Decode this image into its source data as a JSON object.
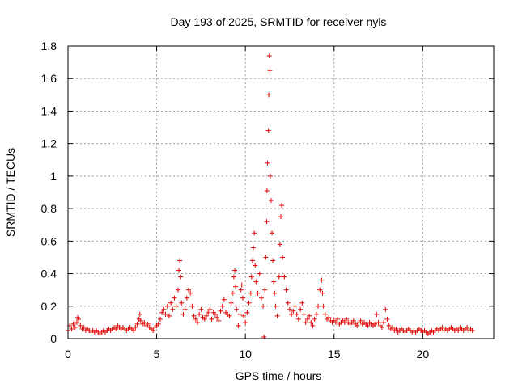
{
  "chart_data": {
    "type": "scatter",
    "title": "Day 193 of 2025, SRMTID for receiver nyls",
    "xlabel": "GPS time / hours",
    "ylabel": "SRMTID / TECUs",
    "xlim": [
      0,
      24
    ],
    "ylim": [
      0,
      1.8
    ],
    "xticks": [
      0,
      5,
      10,
      15,
      20
    ],
    "yticks": [
      0,
      0.2,
      0.4,
      0.6,
      0.8,
      1,
      1.2,
      1.4,
      1.6,
      1.8
    ],
    "ytick_labels": [
      "0",
      "0.2",
      "0.4",
      "0.6",
      "0.8",
      "1",
      "1.2",
      "1.4",
      "1.6",
      "1.8"
    ],
    "grid": true,
    "marker": "+",
    "color": "#e00000",
    "series": [
      {
        "name": "SRMTID",
        "points": [
          [
            0.0,
            0.05
          ],
          [
            0.1,
            0.08
          ],
          [
            0.2,
            0.06
          ],
          [
            0.3,
            0.09
          ],
          [
            0.4,
            0.07
          ],
          [
            0.5,
            0.1
          ],
          [
            0.55,
            0.13
          ],
          [
            0.6,
            0.12
          ],
          [
            0.7,
            0.08
          ],
          [
            0.8,
            0.06
          ],
          [
            0.9,
            0.07
          ],
          [
            1.0,
            0.05
          ],
          [
            1.1,
            0.06
          ],
          [
            1.2,
            0.05
          ],
          [
            1.3,
            0.04
          ],
          [
            1.4,
            0.05
          ],
          [
            1.5,
            0.04
          ],
          [
            1.6,
            0.05
          ],
          [
            1.7,
            0.04
          ],
          [
            1.8,
            0.03
          ],
          [
            1.9,
            0.04
          ],
          [
            2.0,
            0.05
          ],
          [
            2.1,
            0.04
          ],
          [
            2.2,
            0.05
          ],
          [
            2.3,
            0.06
          ],
          [
            2.4,
            0.05
          ],
          [
            2.5,
            0.06
          ],
          [
            2.6,
            0.07
          ],
          [
            2.7,
            0.06
          ],
          [
            2.8,
            0.08
          ],
          [
            2.9,
            0.07
          ],
          [
            3.0,
            0.06
          ],
          [
            3.1,
            0.07
          ],
          [
            3.2,
            0.06
          ],
          [
            3.3,
            0.05
          ],
          [
            3.4,
            0.06
          ],
          [
            3.5,
            0.07
          ],
          [
            3.6,
            0.06
          ],
          [
            3.7,
            0.05
          ],
          [
            3.8,
            0.07
          ],
          [
            3.9,
            0.09
          ],
          [
            4.0,
            0.12
          ],
          [
            4.05,
            0.15
          ],
          [
            4.1,
            0.11
          ],
          [
            4.2,
            0.09
          ],
          [
            4.3,
            0.1
          ],
          [
            4.4,
            0.08
          ],
          [
            4.5,
            0.09
          ],
          [
            4.6,
            0.07
          ],
          [
            4.7,
            0.06
          ],
          [
            4.8,
            0.05
          ],
          [
            4.9,
            0.07
          ],
          [
            5.0,
            0.08
          ],
          [
            5.1,
            0.09
          ],
          [
            5.2,
            0.12
          ],
          [
            5.3,
            0.16
          ],
          [
            5.4,
            0.18
          ],
          [
            5.5,
            0.15
          ],
          [
            5.6,
            0.2
          ],
          [
            5.7,
            0.14
          ],
          [
            5.8,
            0.22
          ],
          [
            5.9,
            0.18
          ],
          [
            6.0,
            0.25
          ],
          [
            6.1,
            0.2
          ],
          [
            6.2,
            0.3
          ],
          [
            6.25,
            0.42
          ],
          [
            6.3,
            0.48
          ],
          [
            6.35,
            0.38
          ],
          [
            6.4,
            0.22
          ],
          [
            6.5,
            0.15
          ],
          [
            6.6,
            0.18
          ],
          [
            6.7,
            0.25
          ],
          [
            6.8,
            0.3
          ],
          [
            6.9,
            0.28
          ],
          [
            7.0,
            0.2
          ],
          [
            7.1,
            0.14
          ],
          [
            7.2,
            0.12
          ],
          [
            7.3,
            0.1
          ],
          [
            7.4,
            0.15
          ],
          [
            7.5,
            0.18
          ],
          [
            7.6,
            0.13
          ],
          [
            7.7,
            0.12
          ],
          [
            7.8,
            0.14
          ],
          [
            7.9,
            0.16
          ],
          [
            8.0,
            0.18
          ],
          [
            8.1,
            0.12
          ],
          [
            8.2,
            0.16
          ],
          [
            8.3,
            0.15
          ],
          [
            8.4,
            0.13
          ],
          [
            8.5,
            0.11
          ],
          [
            8.6,
            0.17
          ],
          [
            8.7,
            0.2
          ],
          [
            8.8,
            0.24
          ],
          [
            8.9,
            0.16
          ],
          [
            9.0,
            0.15
          ],
          [
            9.1,
            0.14
          ],
          [
            9.2,
            0.22
          ],
          [
            9.3,
            0.28
          ],
          [
            9.35,
            0.38
          ],
          [
            9.4,
            0.42
          ],
          [
            9.45,
            0.32
          ],
          [
            9.5,
            0.18
          ],
          [
            9.6,
            0.08
          ],
          [
            9.7,
            0.15
          ],
          [
            9.75,
            0.3
          ],
          [
            9.8,
            0.33
          ],
          [
            9.85,
            0.25
          ],
          [
            9.9,
            0.14
          ],
          [
            10.0,
            0.1
          ],
          [
            10.1,
            0.16
          ],
          [
            10.2,
            0.22
          ],
          [
            10.3,
            0.28
          ],
          [
            10.35,
            0.38
          ],
          [
            10.4,
            0.48
          ],
          [
            10.45,
            0.56
          ],
          [
            10.5,
            0.65
          ],
          [
            10.55,
            0.45
          ],
          [
            10.6,
            0.35
          ],
          [
            10.7,
            0.28
          ],
          [
            10.8,
            0.4
          ],
          [
            10.9,
            0.25
          ],
          [
            11.0,
            0.2
          ],
          [
            11.05,
            0.01
          ],
          [
            11.1,
            0.3
          ],
          [
            11.15,
            0.5
          ],
          [
            11.2,
            0.72
          ],
          [
            11.22,
            0.91
          ],
          [
            11.25,
            1.08
          ],
          [
            11.3,
            1.28
          ],
          [
            11.32,
            1.5
          ],
          [
            11.35,
            1.74
          ],
          [
            11.38,
            1.65
          ],
          [
            11.4,
            1.0
          ],
          [
            11.45,
            0.85
          ],
          [
            11.5,
            0.65
          ],
          [
            11.55,
            0.48
          ],
          [
            11.6,
            0.35
          ],
          [
            11.65,
            0.28
          ],
          [
            11.7,
            0.2
          ],
          [
            11.8,
            0.14
          ],
          [
            11.9,
            0.38
          ],
          [
            11.95,
            0.58
          ],
          [
            12.0,
            0.75
          ],
          [
            12.05,
            0.82
          ],
          [
            12.1,
            0.5
          ],
          [
            12.2,
            0.38
          ],
          [
            12.3,
            0.3
          ],
          [
            12.4,
            0.22
          ],
          [
            12.5,
            0.18
          ],
          [
            12.6,
            0.15
          ],
          [
            12.7,
            0.17
          ],
          [
            12.8,
            0.2
          ],
          [
            12.9,
            0.15
          ],
          [
            13.0,
            0.12
          ],
          [
            13.1,
            0.18
          ],
          [
            13.2,
            0.22
          ],
          [
            13.3,
            0.15
          ],
          [
            13.4,
            0.1
          ],
          [
            13.5,
            0.12
          ],
          [
            13.6,
            0.14
          ],
          [
            13.7,
            0.1
          ],
          [
            13.8,
            0.08
          ],
          [
            13.9,
            0.12
          ],
          [
            14.0,
            0.15
          ],
          [
            14.1,
            0.2
          ],
          [
            14.2,
            0.3
          ],
          [
            14.3,
            0.36
          ],
          [
            14.35,
            0.28
          ],
          [
            14.4,
            0.2
          ],
          [
            14.5,
            0.15
          ],
          [
            14.6,
            0.12
          ],
          [
            14.7,
            0.13
          ],
          [
            14.8,
            0.11
          ],
          [
            14.9,
            0.1
          ],
          [
            15.0,
            0.11
          ],
          [
            15.1,
            0.1
          ],
          [
            15.2,
            0.12
          ],
          [
            15.3,
            0.09
          ],
          [
            15.4,
            0.1
          ],
          [
            15.5,
            0.11
          ],
          [
            15.6,
            0.1
          ],
          [
            15.7,
            0.12
          ],
          [
            15.8,
            0.1
          ],
          [
            15.9,
            0.09
          ],
          [
            16.0,
            0.1
          ],
          [
            16.1,
            0.11
          ],
          [
            16.2,
            0.09
          ],
          [
            16.3,
            0.08
          ],
          [
            16.4,
            0.1
          ],
          [
            16.5,
            0.11
          ],
          [
            16.6,
            0.09
          ],
          [
            16.7,
            0.1
          ],
          [
            16.8,
            0.09
          ],
          [
            16.9,
            0.08
          ],
          [
            17.0,
            0.1
          ],
          [
            17.1,
            0.09
          ],
          [
            17.2,
            0.08
          ],
          [
            17.3,
            0.09
          ],
          [
            17.4,
            0.15
          ],
          [
            17.5,
            0.1
          ],
          [
            17.6,
            0.08
          ],
          [
            17.7,
            0.07
          ],
          [
            17.8,
            0.1
          ],
          [
            17.9,
            0.18
          ],
          [
            18.0,
            0.12
          ],
          [
            18.1,
            0.08
          ],
          [
            18.2,
            0.06
          ],
          [
            18.3,
            0.07
          ],
          [
            18.4,
            0.05
          ],
          [
            18.5,
            0.06
          ],
          [
            18.6,
            0.04
          ],
          [
            18.7,
            0.05
          ],
          [
            18.8,
            0.06
          ],
          [
            18.9,
            0.05
          ],
          [
            19.0,
            0.04
          ],
          [
            19.1,
            0.05
          ],
          [
            19.2,
            0.06
          ],
          [
            19.3,
            0.05
          ],
          [
            19.4,
            0.04
          ],
          [
            19.5,
            0.05
          ],
          [
            19.6,
            0.04
          ],
          [
            19.7,
            0.05
          ],
          [
            19.8,
            0.06
          ],
          [
            19.9,
            0.05
          ],
          [
            20.0,
            0.04
          ],
          [
            20.1,
            0.05
          ],
          [
            20.2,
            0.04
          ],
          [
            20.3,
            0.03
          ],
          [
            20.4,
            0.04
          ],
          [
            20.5,
            0.05
          ],
          [
            20.6,
            0.04
          ],
          [
            20.7,
            0.05
          ],
          [
            20.8,
            0.06
          ],
          [
            20.9,
            0.05
          ],
          [
            21.0,
            0.06
          ],
          [
            21.1,
            0.07
          ],
          [
            21.2,
            0.05
          ],
          [
            21.3,
            0.06
          ],
          [
            21.4,
            0.05
          ],
          [
            21.5,
            0.06
          ],
          [
            21.6,
            0.07
          ],
          [
            21.7,
            0.06
          ],
          [
            21.8,
            0.05
          ],
          [
            21.9,
            0.06
          ],
          [
            22.0,
            0.05
          ],
          [
            22.1,
            0.07
          ],
          [
            22.2,
            0.06
          ],
          [
            22.3,
            0.05
          ],
          [
            22.4,
            0.06
          ],
          [
            22.5,
            0.07
          ],
          [
            22.6,
            0.05
          ],
          [
            22.7,
            0.06
          ],
          [
            22.8,
            0.05
          ]
        ]
      }
    ]
  }
}
